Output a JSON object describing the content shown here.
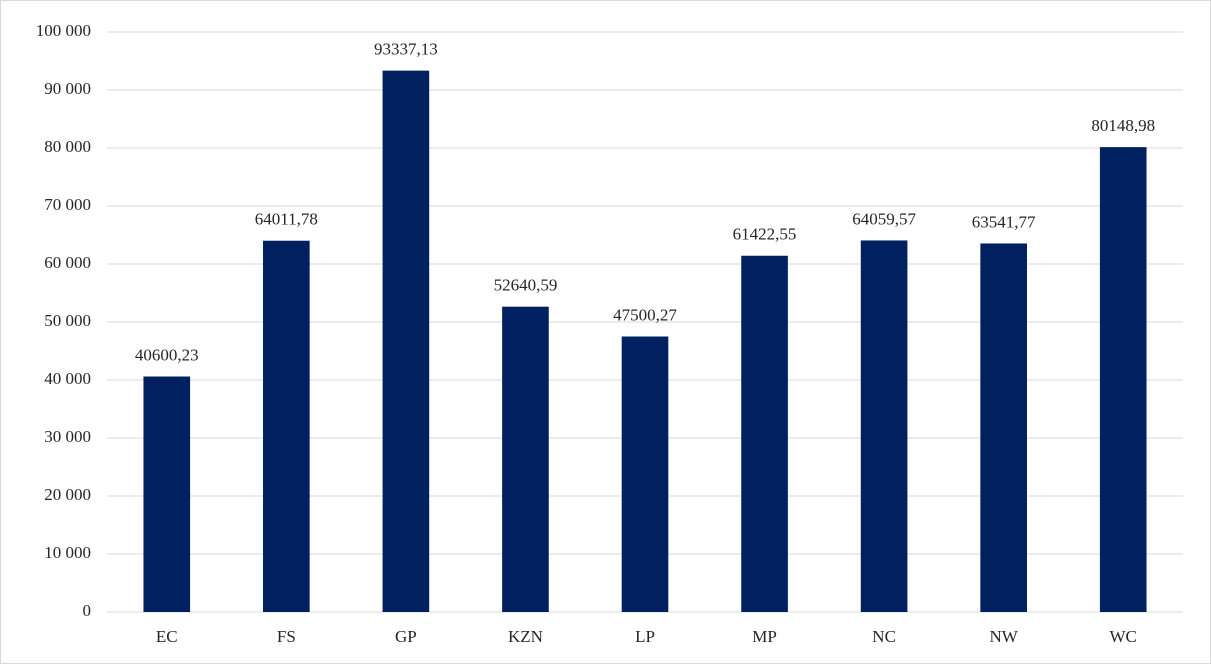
{
  "chart_data": {
    "type": "bar",
    "categories": [
      "EC",
      "FS",
      "GP",
      "KZN",
      "LP",
      "MP",
      "NC",
      "NW",
      "WC"
    ],
    "values": [
      40600.23,
      64011.78,
      93337.13,
      52640.59,
      47500.27,
      61422.55,
      64059.57,
      63541.77,
      80148.98
    ],
    "value_labels": [
      "40600,23",
      "64011,78",
      "93337,13",
      "52640,59",
      "47500,27",
      "61422,55",
      "64059,57",
      "63541,77",
      "80148,98"
    ],
    "color": "#002060",
    "ylim": [
      0,
      100000
    ],
    "yticks": [
      0,
      {
        "value": 10000,
        "label": "10 000"
      },
      {
        "value": 20000,
        "label": "20 000"
      },
      {
        "value": 30000,
        "label": "30 000"
      },
      {
        "value": 40000,
        "label": "40 000"
      },
      {
        "value": 50000,
        "label": "50 000"
      },
      {
        "value": 60000,
        "label": "60 000"
      },
      {
        "value": 70000,
        "label": "70 000"
      },
      {
        "value": 80000,
        "label": "80 000"
      },
      {
        "value": 90000,
        "label": "90 000"
      },
      {
        "value": 100000,
        "label": "100 000"
      }
    ],
    "grid": true
  }
}
